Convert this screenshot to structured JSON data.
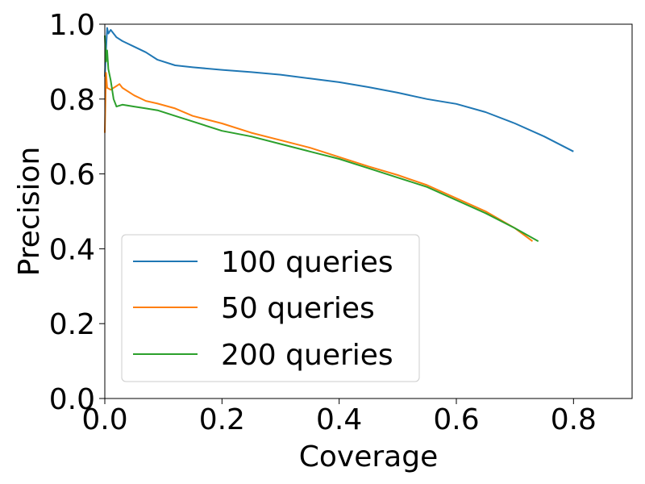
{
  "chart_data": {
    "type": "line",
    "title": "",
    "xlabel": "Coverage",
    "ylabel": "Precision",
    "xlim": [
      0.0,
      0.9
    ],
    "ylim": [
      0.0,
      1.0
    ],
    "xticks": [
      0.0,
      0.2,
      0.4,
      0.6,
      0.8
    ],
    "xtick_labels": [
      "0.0",
      "0.2",
      "0.4",
      "0.6",
      "0.8"
    ],
    "yticks": [
      0.0,
      0.2,
      0.4,
      0.6,
      0.8,
      1.0
    ],
    "ytick_labels": [
      "0.0",
      "0.2",
      "0.4",
      "0.6",
      "0.8",
      "1.0"
    ],
    "grid": false,
    "legend_position": "lower-left",
    "series": [
      {
        "name": "100 queries",
        "color": "#1f77b4",
        "x": [
          0.0,
          0.002,
          0.004,
          0.006,
          0.01,
          0.02,
          0.03,
          0.05,
          0.07,
          0.09,
          0.12,
          0.15,
          0.2,
          0.25,
          0.3,
          0.35,
          0.4,
          0.45,
          0.5,
          0.55,
          0.6,
          0.65,
          0.7,
          0.75,
          0.8
        ],
        "y": [
          0.86,
          0.93,
          0.99,
          0.975,
          0.985,
          0.965,
          0.955,
          0.94,
          0.925,
          0.905,
          0.89,
          0.885,
          0.878,
          0.872,
          0.865,
          0.855,
          0.845,
          0.832,
          0.817,
          0.8,
          0.787,
          0.765,
          0.735,
          0.7,
          0.66
        ]
      },
      {
        "name": "50 queries",
        "color": "#ff7f0e",
        "x": [
          0.0,
          0.002,
          0.004,
          0.01,
          0.02,
          0.025,
          0.03,
          0.05,
          0.07,
          0.09,
          0.12,
          0.15,
          0.2,
          0.25,
          0.3,
          0.35,
          0.4,
          0.45,
          0.5,
          0.55,
          0.6,
          0.65,
          0.7,
          0.73
        ],
        "y": [
          0.71,
          0.87,
          0.83,
          0.825,
          0.835,
          0.84,
          0.83,
          0.81,
          0.795,
          0.788,
          0.775,
          0.755,
          0.735,
          0.71,
          0.69,
          0.67,
          0.645,
          0.62,
          0.597,
          0.57,
          0.535,
          0.5,
          0.455,
          0.42
        ]
      },
      {
        "name": "200 queries",
        "color": "#2ca02c",
        "x": [
          0.0,
          0.002,
          0.004,
          0.006,
          0.01,
          0.015,
          0.02,
          0.03,
          0.05,
          0.07,
          0.09,
          0.12,
          0.15,
          0.2,
          0.25,
          0.3,
          0.35,
          0.4,
          0.45,
          0.5,
          0.55,
          0.6,
          0.65,
          0.7,
          0.74
        ],
        "y": [
          0.97,
          0.9,
          0.93,
          0.88,
          0.85,
          0.8,
          0.78,
          0.785,
          0.78,
          0.775,
          0.77,
          0.755,
          0.74,
          0.715,
          0.7,
          0.68,
          0.66,
          0.64,
          0.615,
          0.59,
          0.565,
          0.53,
          0.495,
          0.455,
          0.42
        ]
      }
    ]
  }
}
